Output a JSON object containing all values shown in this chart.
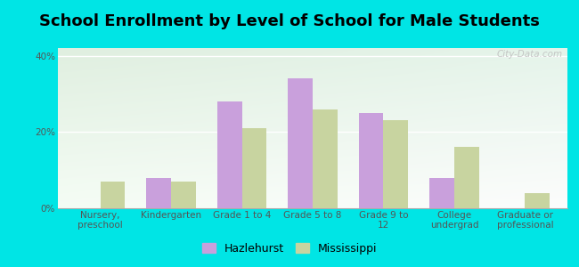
{
  "title": "School Enrollment by Level of School for Male Students",
  "categories": [
    "Nursery,\npreschool",
    "Kindergarten",
    "Grade 1 to 4",
    "Grade 5 to 8",
    "Grade 9 to\n12",
    "College\nundergrad",
    "Graduate or\nprofessional"
  ],
  "hazlehurst": [
    0.0,
    8.0,
    28.0,
    34.0,
    25.0,
    8.0,
    0.0
  ],
  "mississippi": [
    7.0,
    7.0,
    21.0,
    26.0,
    23.0,
    16.0,
    4.0
  ],
  "hazlehurst_color": "#c9a0dc",
  "mississippi_color": "#c8d4a0",
  "background_color": "#00e5e5",
  "yticks": [
    0,
    20,
    40
  ],
  "ylim": [
    0,
    42
  ],
  "bar_width": 0.35,
  "title_fontsize": 13,
  "tick_fontsize": 7.5,
  "legend_label_hazlehurst": "Hazlehurst",
  "legend_label_mississippi": "Mississippi",
  "watermark": "City-Data.com",
  "grad_topleft": [
    0.878,
    0.937,
    0.878
  ],
  "grad_topright": [
    0.898,
    0.957,
    0.918
  ],
  "grad_bottomleft": [
    0.96,
    0.99,
    0.96
  ],
  "grad_bottomright": [
    0.99,
    0.99,
    0.99
  ]
}
